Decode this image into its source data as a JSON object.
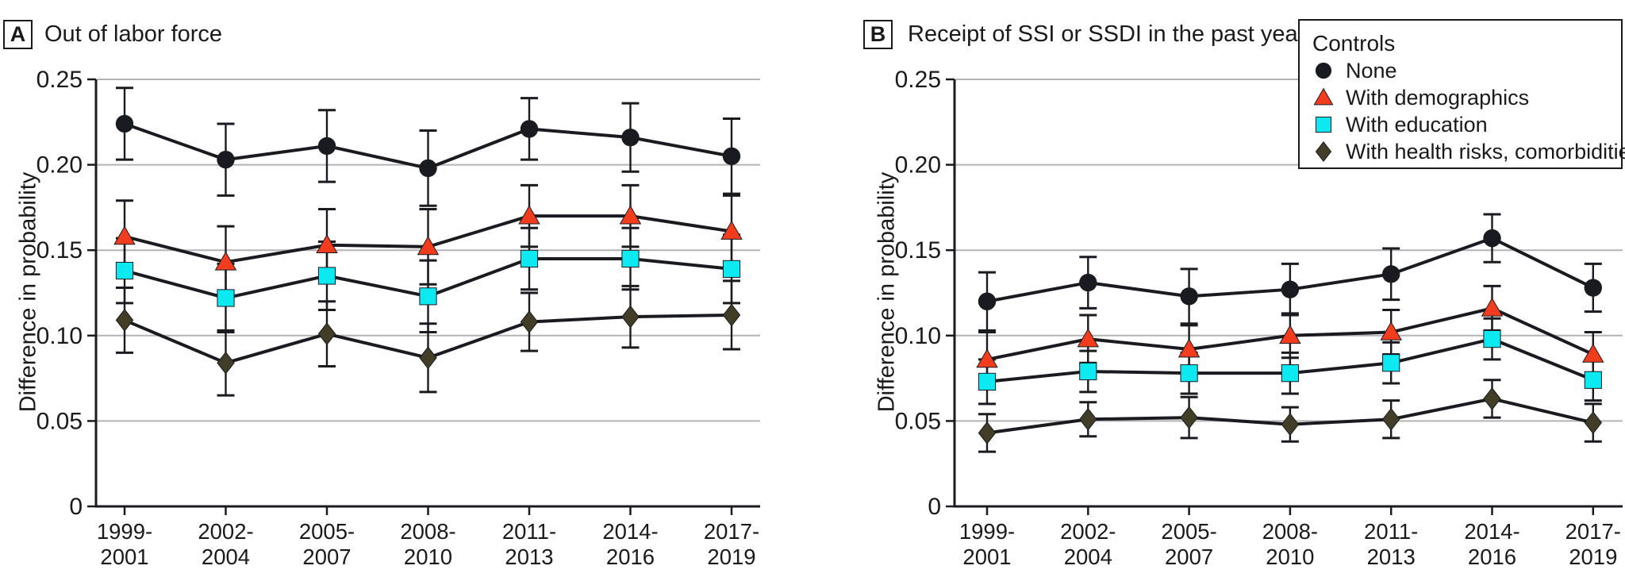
{
  "figure": {
    "background": "#ffffff",
    "text_color": "#1a1a1a",
    "grid_color": "#b4b4b4",
    "axis_color": "#1a1a21"
  },
  "legend": {
    "title": "Controls",
    "position": "top-right",
    "items": [
      {
        "label": "None",
        "marker": "circle",
        "color": "#1a1a21"
      },
      {
        "label": "With demographics",
        "marker": "triangle",
        "color": "#f23c1e"
      },
      {
        "label": "With education",
        "marker": "square",
        "color": "#0ce9f0"
      },
      {
        "label": "With health risks, comorbidities",
        "marker": "diamond",
        "color": "#413d27"
      }
    ]
  },
  "chart_data": [
    {
      "type": "line",
      "panel_label": "A",
      "title": "Out of labor force",
      "xlabel": "",
      "ylabel": "Difference in probability",
      "ylim": [
        0,
        0.25
      ],
      "yticks": [
        0,
        0.05,
        0.1,
        0.15,
        0.2,
        0.25
      ],
      "ytick_labels": [
        "0",
        "0.05",
        "0.10",
        "0.15",
        "0.20",
        "0.25"
      ],
      "grid": "horizontal",
      "error_bars": true,
      "categories": [
        "1999-2001",
        "2002-2004",
        "2005-2007",
        "2008-2010",
        "2011-2013",
        "2014-2016",
        "2017-2019"
      ],
      "series": [
        {
          "name": "None",
          "marker": "circle",
          "color": "#1a1a21",
          "values": [
            0.224,
            0.203,
            0.211,
            0.198,
            0.221,
            0.216,
            0.205
          ],
          "ci_half_width": [
            0.021,
            0.021,
            0.021,
            0.022,
            0.018,
            0.02,
            0.022
          ]
        },
        {
          "name": "With demographics",
          "marker": "triangle",
          "color": "#f23c1e",
          "values": [
            0.158,
            0.143,
            0.153,
            0.152,
            0.17,
            0.17,
            0.161
          ],
          "ci_half_width": [
            0.021,
            0.021,
            0.021,
            0.022,
            0.018,
            0.018,
            0.021
          ]
        },
        {
          "name": "With education",
          "marker": "square",
          "color": "#0ce9f0",
          "values": [
            0.138,
            0.122,
            0.135,
            0.123,
            0.145,
            0.145,
            0.139
          ],
          "ci_half_width": [
            0.019,
            0.02,
            0.02,
            0.021,
            0.018,
            0.018,
            0.02
          ]
        },
        {
          "name": "With health risks, comorbidities",
          "marker": "diamond",
          "color": "#413d27",
          "values": [
            0.109,
            0.084,
            0.101,
            0.087,
            0.108,
            0.111,
            0.112
          ],
          "ci_half_width": [
            0.019,
            0.019,
            0.019,
            0.02,
            0.017,
            0.018,
            0.02
          ]
        }
      ]
    },
    {
      "type": "line",
      "panel_label": "B",
      "title": "Receipt of SSI or SSDI in the past year",
      "xlabel": "",
      "ylabel": "Difference in probability",
      "ylim": [
        0,
        0.25
      ],
      "yticks": [
        0,
        0.05,
        0.1,
        0.15,
        0.2,
        0.25
      ],
      "ytick_labels": [
        "0",
        "0.05",
        "0.10",
        "0.15",
        "0.20",
        "0.25"
      ],
      "grid": "horizontal",
      "error_bars": true,
      "categories": [
        "1999-2001",
        "2002-2004",
        "2005-2007",
        "2008-2010",
        "2011-2013",
        "2014-2016",
        "2017-2019"
      ],
      "series": [
        {
          "name": "None",
          "marker": "circle",
          "color": "#1a1a21",
          "values": [
            0.12,
            0.131,
            0.123,
            0.127,
            0.136,
            0.157,
            0.128
          ],
          "ci_half_width": [
            0.017,
            0.015,
            0.016,
            0.015,
            0.015,
            0.014,
            0.014
          ]
        },
        {
          "name": "With demographics",
          "marker": "triangle",
          "color": "#f23c1e",
          "values": [
            0.086,
            0.098,
            0.092,
            0.1,
            0.102,
            0.116,
            0.089
          ],
          "ci_half_width": [
            0.016,
            0.014,
            0.014,
            0.013,
            0.013,
            0.013,
            0.013
          ]
        },
        {
          "name": "With education",
          "marker": "square",
          "color": "#0ce9f0",
          "values": [
            0.073,
            0.079,
            0.078,
            0.078,
            0.084,
            0.098,
            0.074
          ],
          "ci_half_width": [
            0.013,
            0.012,
            0.012,
            0.012,
            0.012,
            0.012,
            0.012
          ]
        },
        {
          "name": "With health risks, comorbidities",
          "marker": "diamond",
          "color": "#413d27",
          "values": [
            0.043,
            0.051,
            0.052,
            0.048,
            0.051,
            0.063,
            0.049
          ],
          "ci_half_width": [
            0.011,
            0.01,
            0.012,
            0.01,
            0.011,
            0.011,
            0.011
          ]
        }
      ]
    }
  ]
}
